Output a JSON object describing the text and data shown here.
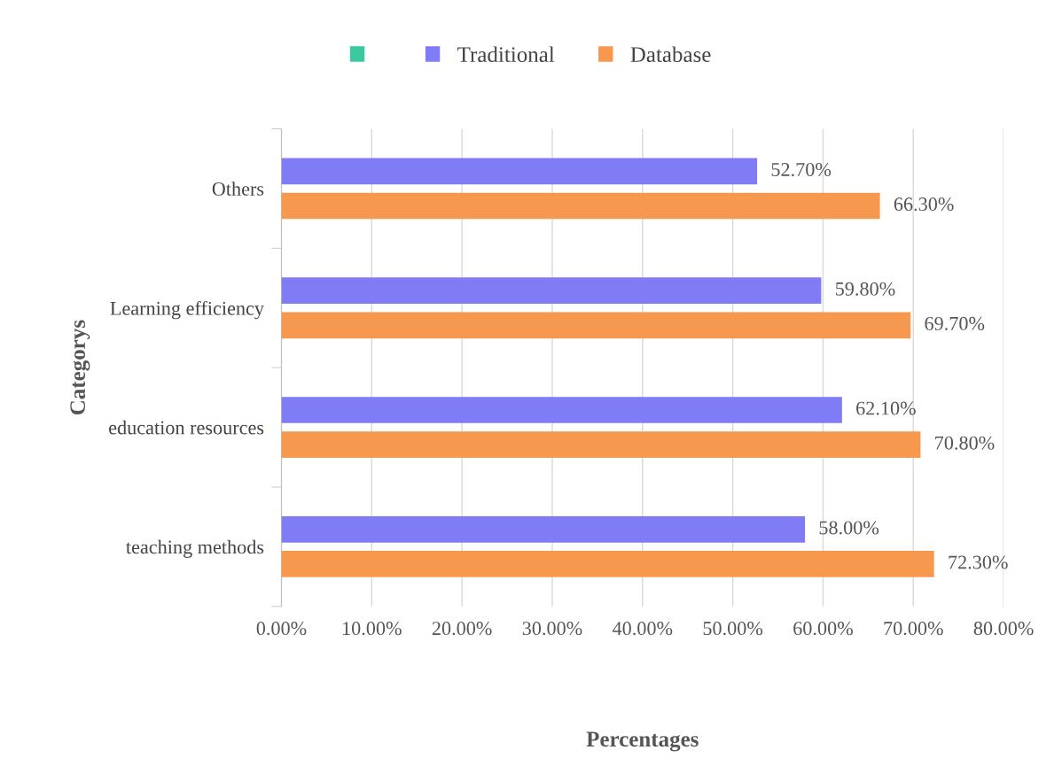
{
  "chart_data": {
    "type": "bar",
    "orientation": "horizontal",
    "xlabel": "Percentages",
    "ylabel": "Categorys",
    "categories": [
      "Others",
      "Learning efficiency",
      "education resources",
      "teaching methods"
    ],
    "series": [
      {
        "color": "#3cc8a0",
        "values": [
          null,
          null,
          null,
          null
        ]
      },
      {
        "name": "Traditional",
        "color": "#7f7cf6",
        "values": [
          52.7,
          59.8,
          62.1,
          58.0
        ],
        "value_labels": [
          "52.70%",
          "59.80%",
          "62.10%",
          "58.00%"
        ]
      },
      {
        "name": "Database",
        "color": "#f7984f",
        "values": [
          66.3,
          69.7,
          70.8,
          72.3
        ],
        "value_labels": [
          "66.30%",
          "69.70%",
          "70.80%",
          "72.30%"
        ]
      }
    ],
    "xlim": [
      0,
      80
    ],
    "xticks": [
      {
        "value": 0,
        "label": "0.00%"
      },
      {
        "value": 10,
        "label": "10.00%"
      },
      {
        "value": 20,
        "label": "20.00%"
      },
      {
        "value": 30,
        "label": "30.00%"
      },
      {
        "value": 40,
        "label": "40.00%"
      },
      {
        "value": 50,
        "label": "50.00%"
      },
      {
        "value": 60,
        "label": "60.00%"
      },
      {
        "value": 70,
        "label": "70.00%"
      },
      {
        "value": 80,
        "label": "80.00%"
      }
    ],
    "grid": "x",
    "legend": "top"
  }
}
